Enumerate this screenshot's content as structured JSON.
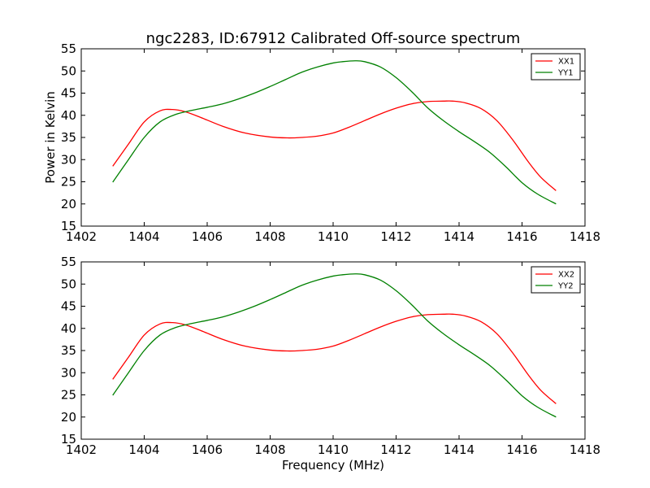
{
  "figure": {
    "title": "ngc2283, ID:67912 Calibrated Off-source spectrum",
    "ylabel": "Power in Kelvin",
    "xlabel": "Frequency (MHz)"
  },
  "chart_data": [
    {
      "type": "line",
      "xlim": [
        1402,
        1418
      ],
      "ylim": [
        15,
        55
      ],
      "xticks": [
        1402,
        1404,
        1406,
        1408,
        1410,
        1412,
        1414,
        1416,
        1418
      ],
      "yticks": [
        15,
        20,
        25,
        30,
        35,
        40,
        45,
        50,
        55
      ],
      "grid": false,
      "legend_position": "top-right",
      "series": [
        {
          "name": "XX1",
          "color": "#ff0000",
          "x": [
            1403.0,
            1403.5,
            1404.0,
            1404.5,
            1404.9,
            1405.3,
            1405.8,
            1406.5,
            1407.2,
            1408.0,
            1408.6,
            1409.0,
            1409.5,
            1410.0,
            1410.5,
            1411.0,
            1411.5,
            1412.0,
            1412.5,
            1413.0,
            1413.5,
            1413.8,
            1414.2,
            1414.7,
            1415.2,
            1415.7,
            1416.2,
            1416.6,
            1417.08
          ],
          "y": [
            28.5,
            33.5,
            38.5,
            41.0,
            41.3,
            40.8,
            39.5,
            37.5,
            36.0,
            35.1,
            34.9,
            35.0,
            35.3,
            36.0,
            37.3,
            38.8,
            40.3,
            41.6,
            42.6,
            43.1,
            43.2,
            43.2,
            42.8,
            41.5,
            38.8,
            34.5,
            29.5,
            26.0,
            23.0
          ]
        },
        {
          "name": "YY1",
          "color": "#008000",
          "x": [
            1403.0,
            1403.5,
            1404.0,
            1404.5,
            1405.0,
            1405.5,
            1406.0,
            1406.5,
            1407.0,
            1407.5,
            1408.0,
            1408.5,
            1409.0,
            1409.5,
            1410.0,
            1410.3,
            1410.7,
            1411.0,
            1411.5,
            1412.0,
            1412.5,
            1413.0,
            1413.5,
            1414.0,
            1414.5,
            1415.0,
            1415.5,
            1416.0,
            1416.5,
            1417.08
          ],
          "y": [
            24.9,
            30.0,
            35.0,
            38.5,
            40.2,
            41.1,
            41.8,
            42.6,
            43.7,
            45.0,
            46.5,
            48.1,
            49.7,
            50.9,
            51.8,
            52.1,
            52.3,
            52.1,
            50.9,
            48.5,
            45.3,
            41.7,
            38.8,
            36.3,
            34.0,
            31.5,
            28.3,
            24.8,
            22.2,
            20.0
          ]
        }
      ]
    },
    {
      "type": "line",
      "xlim": [
        1402,
        1418
      ],
      "ylim": [
        15,
        55
      ],
      "xticks": [
        1402,
        1404,
        1406,
        1408,
        1410,
        1412,
        1414,
        1416,
        1418
      ],
      "yticks": [
        15,
        20,
        25,
        30,
        35,
        40,
        45,
        50,
        55
      ],
      "grid": false,
      "legend_position": "top-right",
      "series": [
        {
          "name": "XX2",
          "color": "#ff0000",
          "x": [
            1403.0,
            1403.5,
            1404.0,
            1404.5,
            1404.9,
            1405.3,
            1405.8,
            1406.5,
            1407.2,
            1408.0,
            1408.6,
            1409.0,
            1409.5,
            1410.0,
            1410.5,
            1411.0,
            1411.5,
            1412.0,
            1412.5,
            1413.0,
            1413.5,
            1413.8,
            1414.2,
            1414.7,
            1415.2,
            1415.7,
            1416.2,
            1416.6,
            1417.08
          ],
          "y": [
            28.5,
            33.5,
            38.5,
            41.0,
            41.3,
            40.8,
            39.5,
            37.5,
            36.0,
            35.1,
            34.9,
            35.0,
            35.3,
            36.0,
            37.3,
            38.8,
            40.3,
            41.6,
            42.6,
            43.1,
            43.2,
            43.2,
            42.8,
            41.5,
            38.8,
            34.5,
            29.5,
            26.0,
            23.0
          ]
        },
        {
          "name": "YY2",
          "color": "#008000",
          "x": [
            1403.0,
            1403.5,
            1404.0,
            1404.5,
            1405.0,
            1405.5,
            1406.0,
            1406.5,
            1407.0,
            1407.5,
            1408.0,
            1408.5,
            1409.0,
            1409.5,
            1410.0,
            1410.3,
            1410.7,
            1411.0,
            1411.5,
            1412.0,
            1412.5,
            1413.0,
            1413.5,
            1414.0,
            1414.5,
            1415.0,
            1415.5,
            1416.0,
            1416.5,
            1417.08
          ],
          "y": [
            24.9,
            30.0,
            35.0,
            38.5,
            40.2,
            41.1,
            41.8,
            42.6,
            43.7,
            45.0,
            46.5,
            48.1,
            49.7,
            50.9,
            51.8,
            52.1,
            52.3,
            52.1,
            50.9,
            48.5,
            45.3,
            41.7,
            38.8,
            36.3,
            34.0,
            31.5,
            28.3,
            24.8,
            22.2,
            20.0
          ]
        }
      ]
    }
  ]
}
